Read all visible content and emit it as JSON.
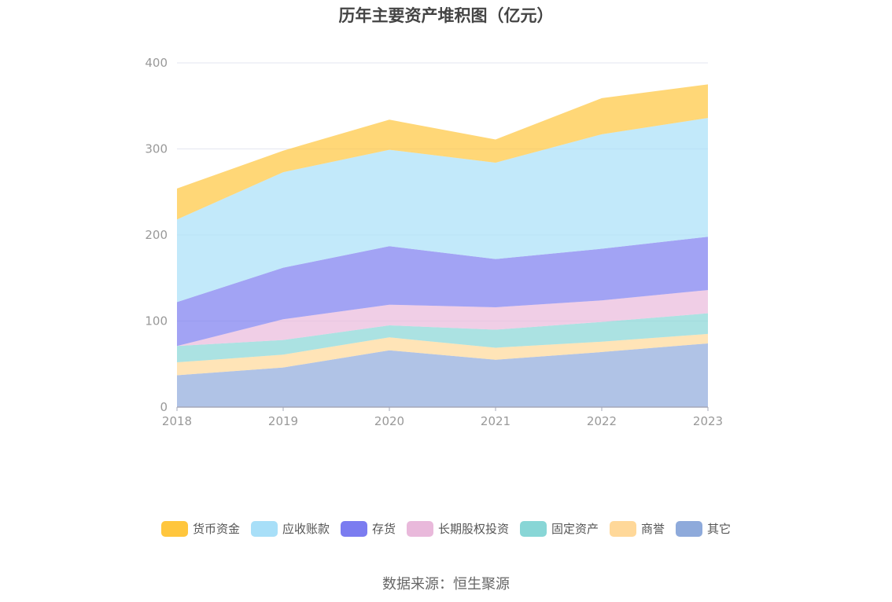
{
  "chart_data": {
    "type": "area",
    "stacked": true,
    "title": "历年主要资产堆积图（亿元）",
    "xlabel": "",
    "ylabel": "",
    "categories": [
      "2018",
      "2019",
      "2020",
      "2021",
      "2022",
      "2023"
    ],
    "ylim": [
      0,
      400
    ],
    "yticks": [
      0,
      100,
      200,
      300,
      400
    ],
    "grid": true,
    "legend_position": "bottom",
    "series": [
      {
        "name": "其它",
        "color": "#8eaadb",
        "values": [
          37,
          46,
          66,
          55,
          64,
          74
        ]
      },
      {
        "name": "商誉",
        "color": "#ffd899",
        "values": [
          15,
          15,
          15,
          14,
          12,
          11
        ]
      },
      {
        "name": "固定资产",
        "color": "#88d6d6",
        "values": [
          19,
          17,
          14,
          21,
          23,
          24
        ]
      },
      {
        "name": "长期股权投资",
        "color": "#e9b9db",
        "values": [
          0,
          24,
          24,
          26,
          25,
          27
        ]
      },
      {
        "name": "存货",
        "color": "#7b7cf0",
        "values": [
          51,
          60,
          68,
          56,
          60,
          62
        ]
      },
      {
        "name": "应收账款",
        "color": "#a8dff8",
        "values": [
          96,
          111,
          112,
          112,
          133,
          138
        ]
      },
      {
        "name": "货币资金",
        "color": "#ffc63d",
        "values": [
          36,
          25,
          35,
          27,
          42,
          39
        ]
      }
    ],
    "legend_order": [
      "货币资金",
      "应收账款",
      "存货",
      "长期股权投资",
      "固定资产",
      "商誉",
      "其它"
    ]
  },
  "source_text": "数据来源：恒生聚源"
}
